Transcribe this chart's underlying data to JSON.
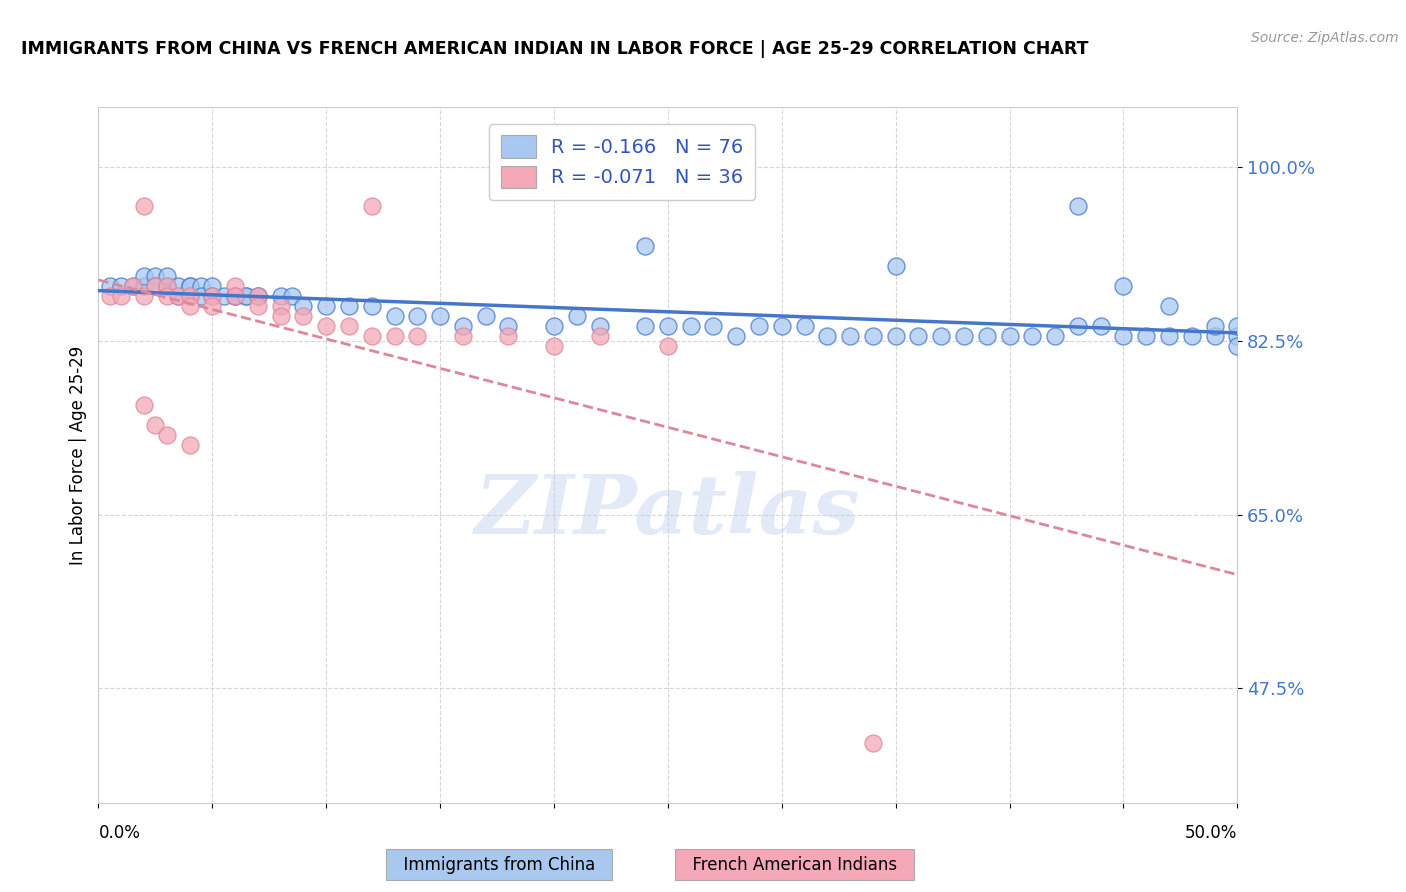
{
  "title": "IMMIGRANTS FROM CHINA VS FRENCH AMERICAN INDIAN IN LABOR FORCE | AGE 25-29 CORRELATION CHART",
  "source": "Source: ZipAtlas.com",
  "ylabel": "In Labor Force | Age 25-29",
  "yticks": [
    0.475,
    0.65,
    0.825,
    1.0
  ],
  "ytick_labels": [
    "47.5%",
    "65.0%",
    "82.5%",
    "100.0%"
  ],
  "xlim": [
    0.0,
    0.5
  ],
  "ylim": [
    0.36,
    1.06
  ],
  "legend_R1": "R = -0.166",
  "legend_N1": "N = 76",
  "legend_R2": "R = -0.071",
  "legend_N2": "N = 36",
  "color_blue": "#A8C8F0",
  "color_pink": "#F4A8B8",
  "color_blue_line": "#4477CC",
  "color_pink_line": "#DD8899",
  "watermark": "ZIPatlas",
  "blue_x": [
    0.005,
    0.01,
    0.015,
    0.02,
    0.02,
    0.025,
    0.025,
    0.03,
    0.03,
    0.03,
    0.035,
    0.035,
    0.04,
    0.04,
    0.04,
    0.045,
    0.045,
    0.05,
    0.05,
    0.055,
    0.06,
    0.06,
    0.065,
    0.065,
    0.07,
    0.07,
    0.08,
    0.085,
    0.09,
    0.1,
    0.11,
    0.12,
    0.13,
    0.14,
    0.15,
    0.16,
    0.17,
    0.18,
    0.2,
    0.21,
    0.22,
    0.24,
    0.25,
    0.26,
    0.27,
    0.28,
    0.29,
    0.3,
    0.31,
    0.32,
    0.33,
    0.34,
    0.35,
    0.36,
    0.37,
    0.38,
    0.39,
    0.4,
    0.41,
    0.42,
    0.43,
    0.44,
    0.45,
    0.46,
    0.47,
    0.48,
    0.49,
    0.49,
    0.5,
    0.5,
    0.24,
    0.35,
    0.43,
    0.45,
    0.5,
    0.47
  ],
  "blue_y": [
    0.88,
    0.88,
    0.88,
    0.88,
    0.89,
    0.89,
    0.88,
    0.88,
    0.88,
    0.89,
    0.87,
    0.88,
    0.88,
    0.87,
    0.88,
    0.88,
    0.87,
    0.88,
    0.87,
    0.87,
    0.87,
    0.87,
    0.87,
    0.87,
    0.87,
    0.87,
    0.87,
    0.87,
    0.86,
    0.86,
    0.86,
    0.86,
    0.85,
    0.85,
    0.85,
    0.84,
    0.85,
    0.84,
    0.84,
    0.85,
    0.84,
    0.84,
    0.84,
    0.84,
    0.84,
    0.83,
    0.84,
    0.84,
    0.84,
    0.83,
    0.83,
    0.83,
    0.83,
    0.83,
    0.83,
    0.83,
    0.83,
    0.83,
    0.83,
    0.83,
    0.84,
    0.84,
    0.83,
    0.83,
    0.83,
    0.83,
    0.83,
    0.84,
    0.83,
    0.84,
    0.92,
    0.9,
    0.96,
    0.88,
    0.82,
    0.86
  ],
  "pink_x": [
    0.005,
    0.01,
    0.015,
    0.02,
    0.02,
    0.025,
    0.03,
    0.03,
    0.035,
    0.04,
    0.04,
    0.05,
    0.05,
    0.06,
    0.06,
    0.07,
    0.07,
    0.08,
    0.08,
    0.09,
    0.1,
    0.11,
    0.12,
    0.13,
    0.14,
    0.16,
    0.18,
    0.2,
    0.22,
    0.25,
    0.02,
    0.025,
    0.03,
    0.04,
    0.34,
    0.12
  ],
  "pink_y": [
    0.87,
    0.87,
    0.88,
    0.87,
    0.96,
    0.88,
    0.88,
    0.87,
    0.87,
    0.87,
    0.86,
    0.87,
    0.86,
    0.88,
    0.87,
    0.87,
    0.86,
    0.86,
    0.85,
    0.85,
    0.84,
    0.84,
    0.83,
    0.83,
    0.83,
    0.83,
    0.83,
    0.82,
    0.83,
    0.82,
    0.76,
    0.74,
    0.73,
    0.72,
    0.42,
    0.96
  ]
}
